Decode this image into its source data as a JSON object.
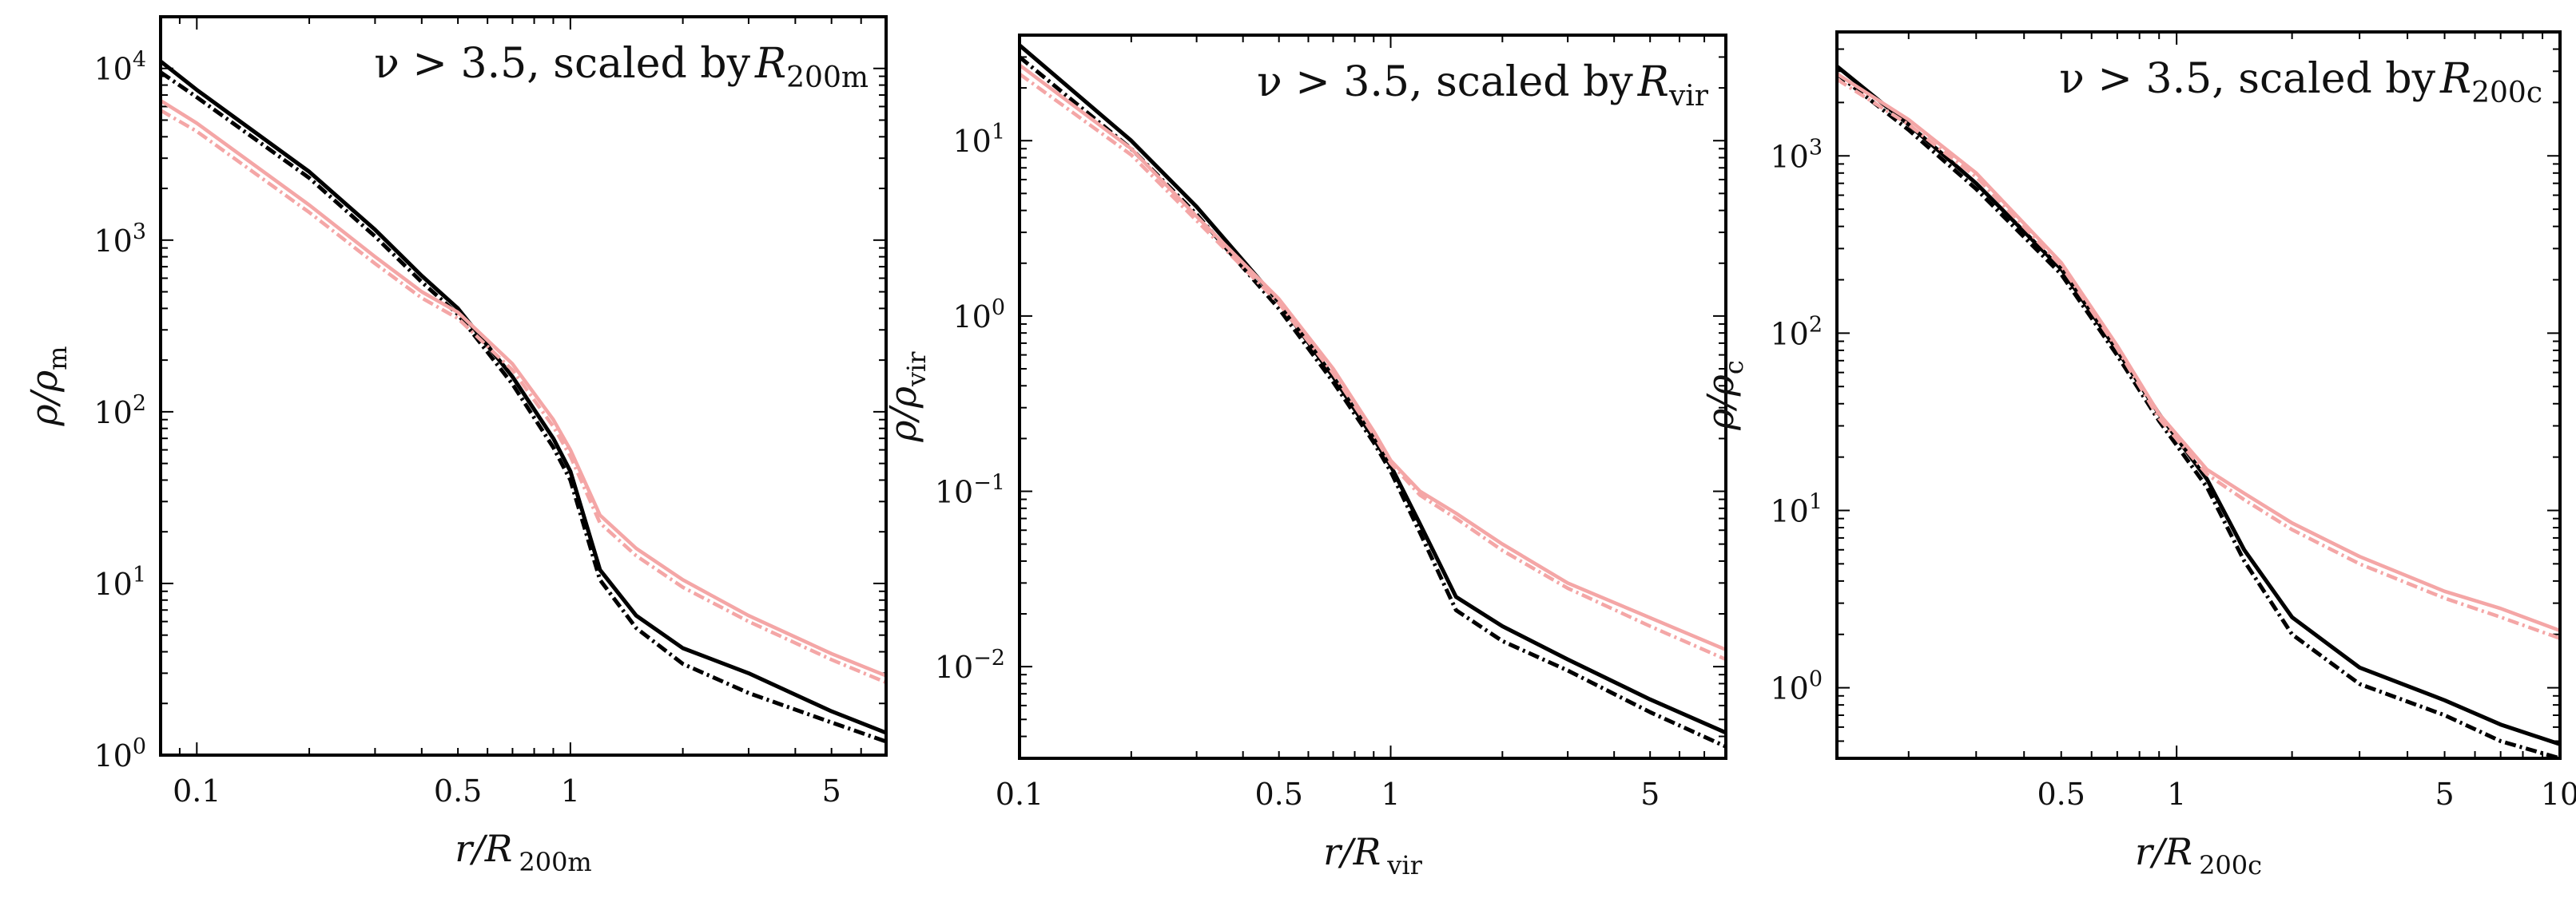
{
  "chart_data": [
    {
      "type": "line",
      "title_prefix": "ν > 3.5, scaled by",
      "title_symbol": "R",
      "title_subscript": "200m",
      "xlabel": "r/R",
      "xlabel_subscript": "200m",
      "ylabel": "ρ/ρ",
      "ylabel_subscript": "m",
      "xscale": "log",
      "yscale": "log",
      "xlim": [
        0.08,
        7
      ],
      "ylim": [
        1,
        20000
      ],
      "xticks": [
        {
          "value": 0.1,
          "label": "0.1"
        },
        {
          "value": 0.5,
          "label": "0.5"
        },
        {
          "value": 1,
          "label": "1"
        },
        {
          "value": 5,
          "label": "5"
        }
      ],
      "yticks": [
        {
          "value": 1,
          "base": "10",
          "exp": "0"
        },
        {
          "value": 10,
          "base": "10",
          "exp": "1"
        },
        {
          "value": 100,
          "base": "10",
          "exp": "2"
        },
        {
          "value": 1000,
          "base": "10",
          "exp": "3"
        },
        {
          "value": 10000,
          "base": "10",
          "exp": "4"
        }
      ],
      "series": [
        {
          "name": "black solid",
          "color": "#000000",
          "style": "solid",
          "x": [
            0.08,
            0.1,
            0.2,
            0.3,
            0.4,
            0.5,
            0.7,
            0.9,
            1.0,
            1.2,
            1.5,
            2.0,
            3.0,
            5.0,
            7.0
          ],
          "y": [
            11000,
            7500,
            2500,
            1150,
            620,
            400,
            160,
            70,
            45,
            12,
            6.5,
            4.2,
            3.0,
            1.8,
            1.35
          ]
        },
        {
          "name": "black dashed",
          "color": "#000000",
          "style": "dashed",
          "x": [
            0.08,
            0.1,
            0.2,
            0.3,
            0.4,
            0.5,
            0.7,
            0.9,
            1.0,
            1.2,
            1.5,
            2.0,
            3.0,
            5.0,
            7.0
          ],
          "y": [
            9500,
            6800,
            2300,
            1050,
            570,
            370,
            145,
            62,
            40,
            10.5,
            5.5,
            3.4,
            2.3,
            1.55,
            1.2
          ]
        },
        {
          "name": "pink solid",
          "color": "#f4a6a6",
          "style": "solid",
          "x": [
            0.08,
            0.1,
            0.2,
            0.3,
            0.4,
            0.5,
            0.7,
            0.9,
            1.0,
            1.2,
            1.5,
            2.0,
            3.0,
            5.0,
            7.0
          ],
          "y": [
            6500,
            4800,
            1600,
            800,
            500,
            380,
            190,
            90,
            60,
            25,
            16,
            10.5,
            6.5,
            3.9,
            2.9
          ]
        },
        {
          "name": "pink dashed",
          "color": "#f4a6a6",
          "style": "dashed",
          "x": [
            0.08,
            0.1,
            0.2,
            0.3,
            0.4,
            0.5,
            0.7,
            0.9,
            1.0,
            1.2,
            1.5,
            2.0,
            3.0,
            5.0,
            7.0
          ],
          "y": [
            5700,
            4300,
            1450,
            730,
            460,
            350,
            175,
            82,
            55,
            22.5,
            14.5,
            9.5,
            6.0,
            3.6,
            2.65
          ]
        }
      ]
    },
    {
      "type": "line",
      "title_prefix": "ν > 3.5, scaled by",
      "title_symbol": "R",
      "title_subscript": "vir",
      "xlabel": "r/R",
      "xlabel_subscript": "vir",
      "ylabel": "ρ/ρ",
      "ylabel_subscript": "vir",
      "xscale": "log",
      "yscale": "log",
      "xlim": [
        0.1,
        8
      ],
      "ylim": [
        0.003,
        40
      ],
      "xticks": [
        {
          "value": 0.1,
          "label": "0.1"
        },
        {
          "value": 0.5,
          "label": "0.5"
        },
        {
          "value": 1,
          "label": "1"
        },
        {
          "value": 5,
          "label": "5"
        }
      ],
      "yticks": [
        {
          "value": 0.01,
          "base": "10",
          "exp": "−2"
        },
        {
          "value": 0.1,
          "base": "10",
          "exp": "−1"
        },
        {
          "value": 1,
          "base": "10",
          "exp": "0"
        },
        {
          "value": 10,
          "base": "10",
          "exp": "1"
        }
      ],
      "series": [
        {
          "name": "black solid",
          "color": "#000000",
          "style": "solid",
          "x": [
            0.1,
            0.2,
            0.3,
            0.5,
            0.7,
            0.9,
            1.0,
            1.2,
            1.5,
            2.0,
            3.0,
            5.0,
            8.0
          ],
          "y": [
            35,
            10,
            4.2,
            1.2,
            0.45,
            0.2,
            0.14,
            0.065,
            0.025,
            0.017,
            0.011,
            0.0065,
            0.0042
          ]
        },
        {
          "name": "black dashed",
          "color": "#000000",
          "style": "dashed",
          "x": [
            0.1,
            0.2,
            0.3,
            0.5,
            0.7,
            0.9,
            1.0,
            1.2,
            1.5,
            2.0,
            3.0,
            5.0,
            8.0
          ],
          "y": [
            30,
            9.0,
            3.8,
            1.1,
            0.42,
            0.19,
            0.13,
            0.058,
            0.021,
            0.014,
            0.0095,
            0.0055,
            0.0035
          ]
        },
        {
          "name": "pink solid",
          "color": "#f4a6a6",
          "style": "solid",
          "x": [
            0.1,
            0.2,
            0.3,
            0.5,
            0.7,
            0.9,
            1.0,
            1.2,
            1.5,
            2.0,
            3.0,
            5.0,
            8.0
          ],
          "y": [
            27,
            9.0,
            3.7,
            1.25,
            0.5,
            0.22,
            0.15,
            0.1,
            0.075,
            0.05,
            0.03,
            0.019,
            0.0125
          ]
        },
        {
          "name": "pink dashed",
          "color": "#f4a6a6",
          "style": "dashed",
          "x": [
            0.1,
            0.2,
            0.3,
            0.5,
            0.7,
            0.9,
            1.0,
            1.2,
            1.5,
            2.0,
            3.0,
            5.0,
            8.0
          ],
          "y": [
            24,
            8.3,
            3.5,
            1.18,
            0.47,
            0.21,
            0.145,
            0.095,
            0.07,
            0.046,
            0.028,
            0.017,
            0.011
          ]
        }
      ]
    },
    {
      "type": "line",
      "title_prefix": "ν > 3.5, scaled by",
      "title_symbol": "R",
      "title_subscript": "200c",
      "xlabel": "r/R",
      "xlabel_subscript": "200c",
      "ylabel": "ρ/ρ",
      "ylabel_subscript": "c",
      "xscale": "log",
      "yscale": "log",
      "xlim": [
        0.13,
        10
      ],
      "ylim": [
        0.4,
        5000
      ],
      "xticks": [
        {
          "value": 0.5,
          "label": "0.5"
        },
        {
          "value": 1,
          "label": "1"
        },
        {
          "value": 5,
          "label": "5"
        },
        {
          "value": 10,
          "label": "10"
        }
      ],
      "yticks": [
        {
          "value": 1,
          "base": "10",
          "exp": "0"
        },
        {
          "value": 10,
          "base": "10",
          "exp": "1"
        },
        {
          "value": 100,
          "base": "10",
          "exp": "2"
        },
        {
          "value": 1000,
          "base": "10",
          "exp": "3"
        }
      ],
      "series": [
        {
          "name": "black solid",
          "color": "#000000",
          "style": "solid",
          "x": [
            0.13,
            0.2,
            0.3,
            0.5,
            0.7,
            0.9,
            1.2,
            1.5,
            2.0,
            3.0,
            5.0,
            7.0,
            10.0
          ],
          "y": [
            3200,
            1500,
            700,
            230,
            80,
            35,
            15,
            6,
            2.5,
            1.3,
            0.85,
            0.62,
            0.48
          ]
        },
        {
          "name": "black dashed",
          "color": "#000000",
          "style": "dashed",
          "x": [
            0.13,
            0.2,
            0.3,
            0.5,
            0.7,
            0.9,
            1.2,
            1.5,
            2.0,
            3.0,
            5.0,
            7.0,
            10.0
          ],
          "y": [
            2900,
            1400,
            650,
            215,
            75,
            32,
            13.5,
            5.2,
            2.0,
            1.05,
            0.7,
            0.5,
            0.4
          ]
        },
        {
          "name": "pink solid",
          "color": "#f4a6a6",
          "style": "solid",
          "x": [
            0.13,
            0.2,
            0.3,
            0.5,
            0.7,
            0.9,
            1.2,
            1.5,
            2.0,
            3.0,
            5.0,
            7.0,
            10.0
          ],
          "y": [
            2900,
            1600,
            800,
            250,
            85,
            35,
            17,
            12.5,
            8.5,
            5.5,
            3.5,
            2.8,
            2.1
          ]
        },
        {
          "name": "pink dashed",
          "color": "#f4a6a6",
          "style": "dashed",
          "x": [
            0.13,
            0.2,
            0.3,
            0.5,
            0.7,
            0.9,
            1.2,
            1.5,
            2.0,
            3.0,
            5.0,
            7.0,
            10.0
          ],
          "y": [
            2700,
            1500,
            760,
            240,
            82,
            33,
            16,
            11.5,
            7.8,
            5.0,
            3.2,
            2.5,
            1.9
          ]
        }
      ]
    }
  ]
}
